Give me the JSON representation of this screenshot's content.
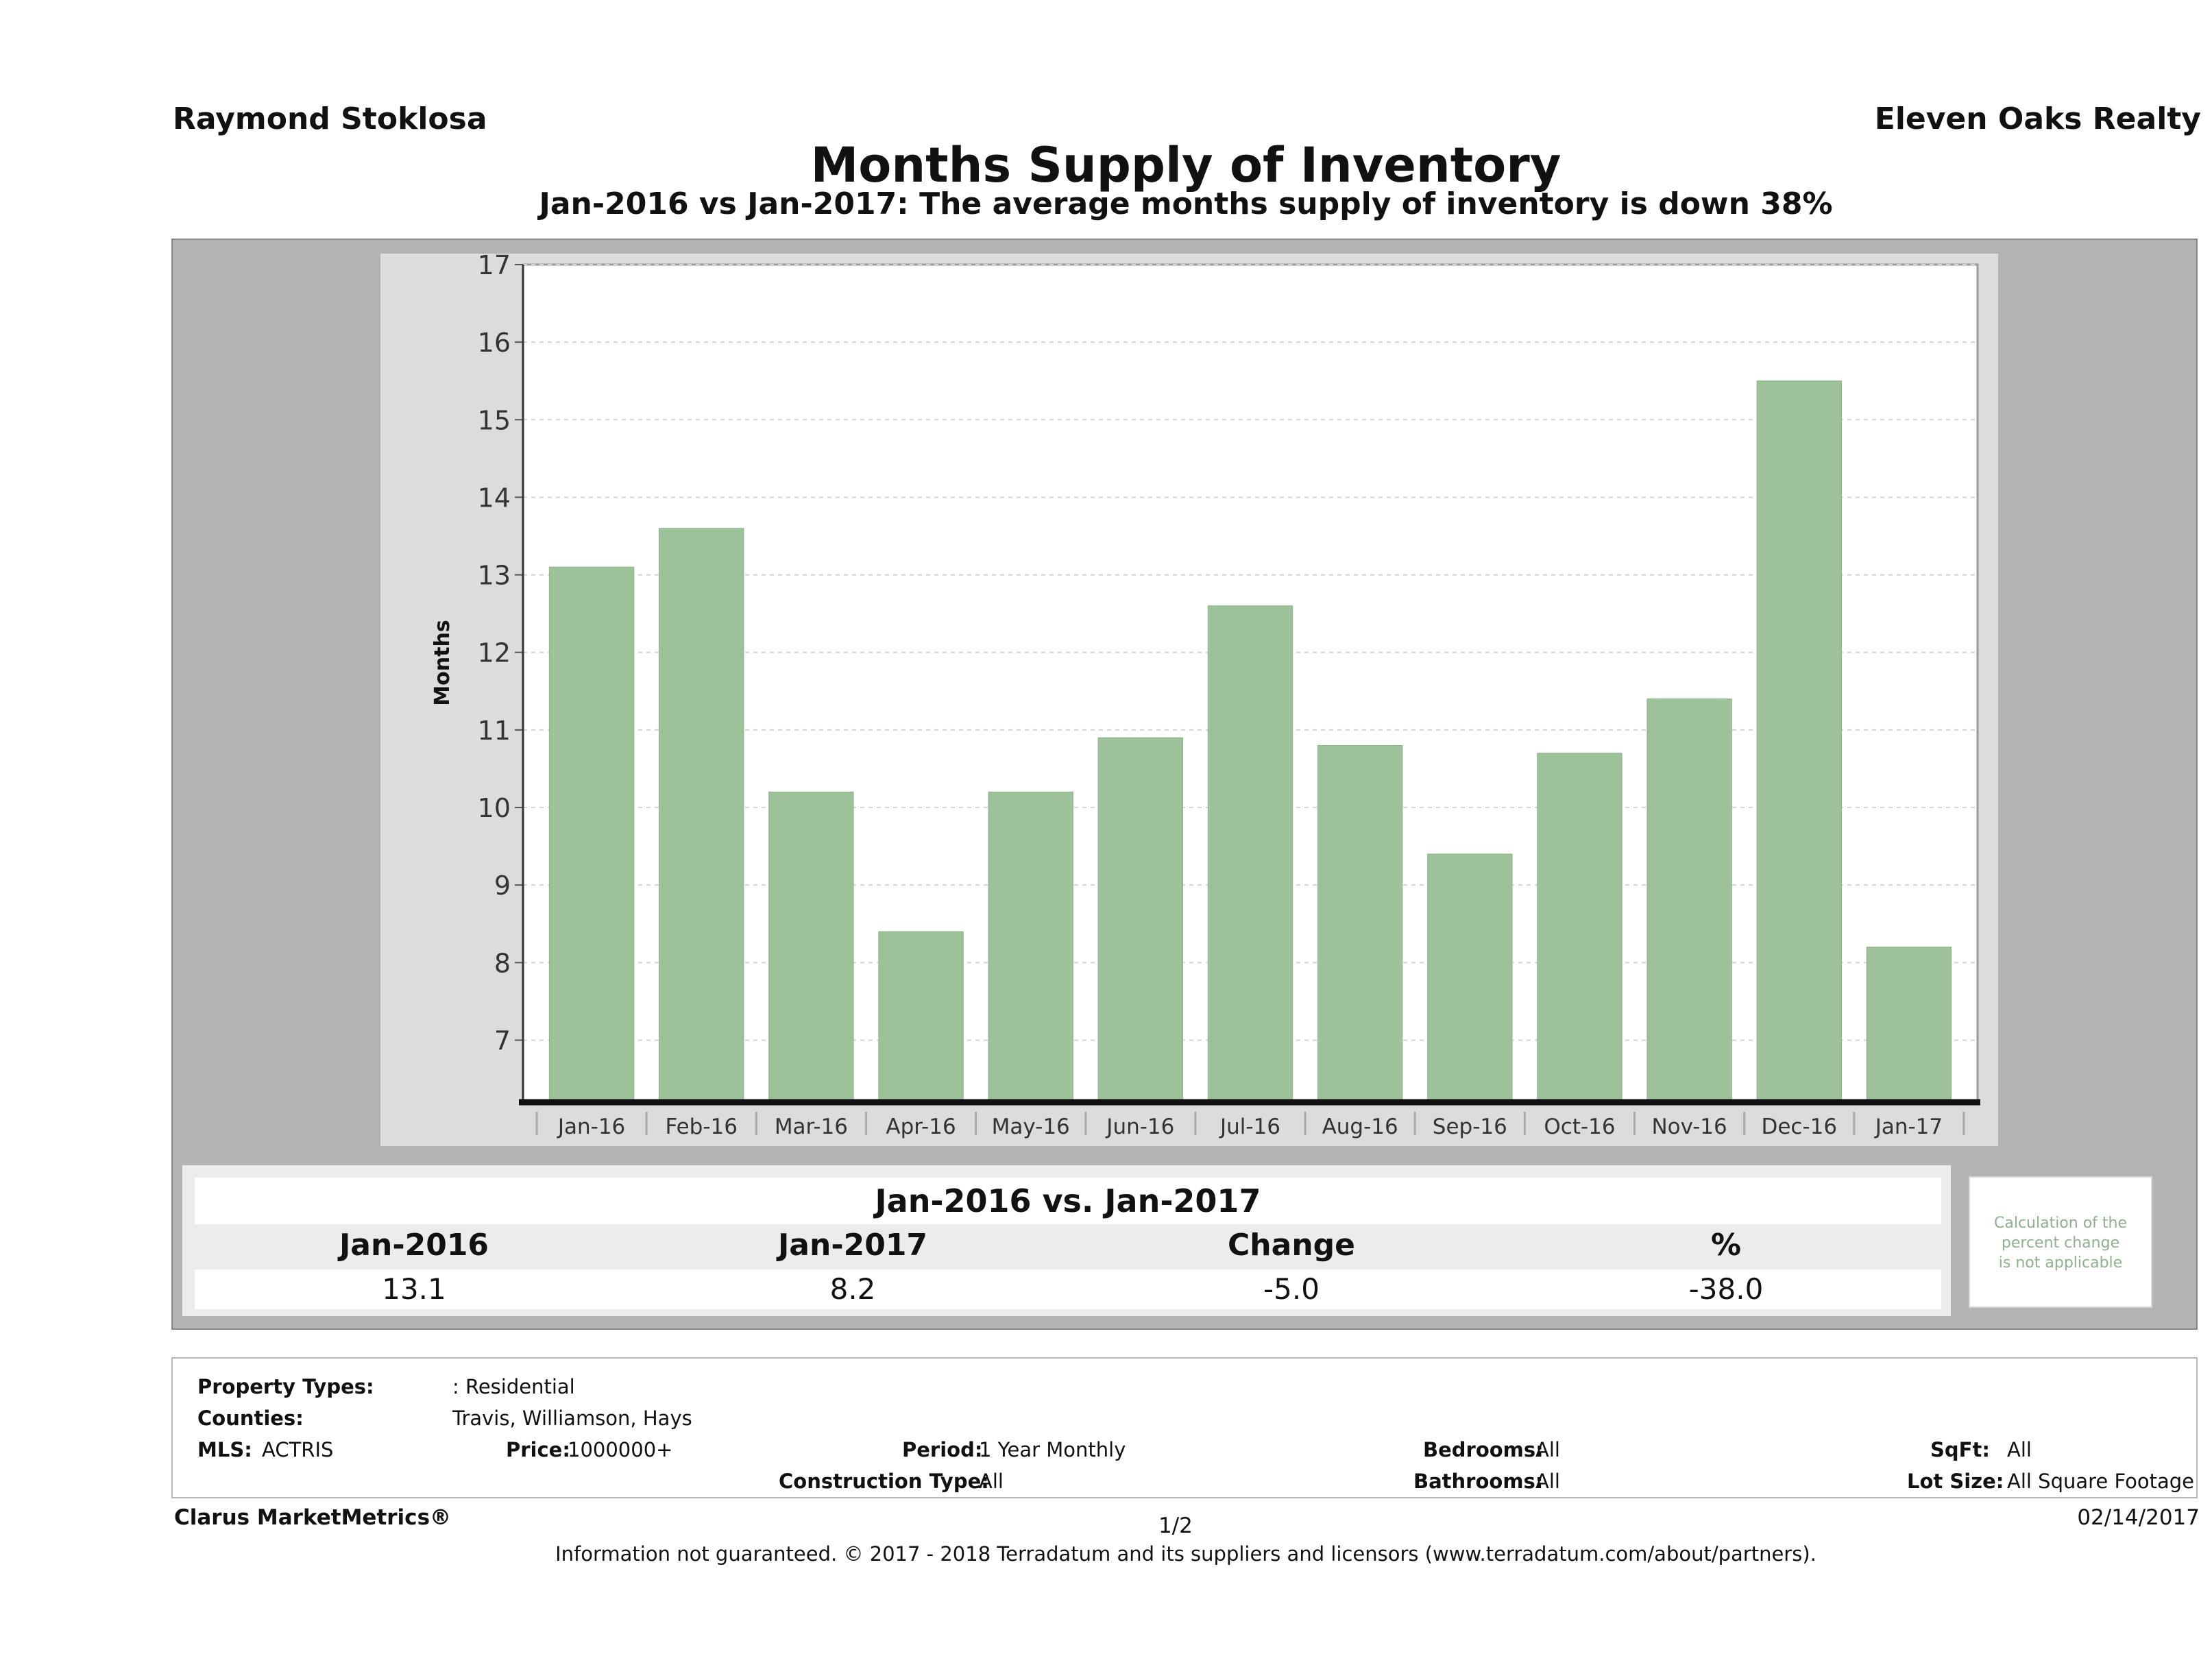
{
  "header": {
    "agent": "Raymond Stoklosa",
    "company": "Eleven Oaks Realty",
    "title": "Months Supply of Inventory",
    "subtitle": "Jan-2016 vs Jan-2017: The average months supply of inventory is down 38%"
  },
  "chart_data": {
    "type": "bar",
    "title": "Months Supply of Inventory",
    "xlabel": "",
    "ylabel": "Months",
    "categories": [
      "Jan-16",
      "Feb-16",
      "Mar-16",
      "Apr-16",
      "May-16",
      "Jun-16",
      "Jul-16",
      "Aug-16",
      "Sep-16",
      "Oct-16",
      "Nov-16",
      "Dec-16",
      "Jan-17"
    ],
    "values": [
      13.1,
      13.6,
      10.2,
      8.4,
      10.2,
      10.9,
      12.6,
      10.8,
      9.4,
      10.7,
      11.4,
      15.5,
      8.2
    ],
    "ylim": [
      6.2,
      17
    ],
    "yticks": [
      7,
      8,
      9,
      10,
      11,
      12,
      13,
      14,
      15,
      16,
      17
    ],
    "grid": true,
    "bar_color": "#9dc29a"
  },
  "summary": {
    "title": "Jan-2016 vs. Jan-2017",
    "headers": [
      "Jan-2016",
      "Jan-2017",
      "Change",
      "%"
    ],
    "values": [
      "13.1",
      "8.2",
      "-5.0",
      "-38.0"
    ],
    "note_lines": [
      "Calculation of the",
      "percent change",
      "is not applicable"
    ]
  },
  "filters": {
    "property_types_label": "Property Types:",
    "property_types_value": ": Residential",
    "counties_label": "Counties:",
    "counties_value": "Travis, Williamson, Hays",
    "mls_label": "MLS:",
    "mls_value": "ACTRIS",
    "price_label": "Price:",
    "price_value": "1000000+",
    "period_label": "Period:",
    "period_value": "1 Year Monthly",
    "construction_label": "Construction Type:",
    "construction_value": "All",
    "bedrooms_label": "Bedrooms:",
    "bedrooms_value": "All",
    "bathrooms_label": "Bathrooms:",
    "bathrooms_value": "All",
    "sqft_label": "SqFt:",
    "sqft_value": "All",
    "lotsize_label": "Lot Size:",
    "lotsize_value": "All Square Footage"
  },
  "footer": {
    "brand": "Clarus MarketMetrics®",
    "page": "1/2",
    "date": "02/14/2017",
    "disclaimer": "Information not guaranteed. © 2017 - 2018 Terradatum and its suppliers and licensors (www.terradatum.com/about/partners)."
  }
}
